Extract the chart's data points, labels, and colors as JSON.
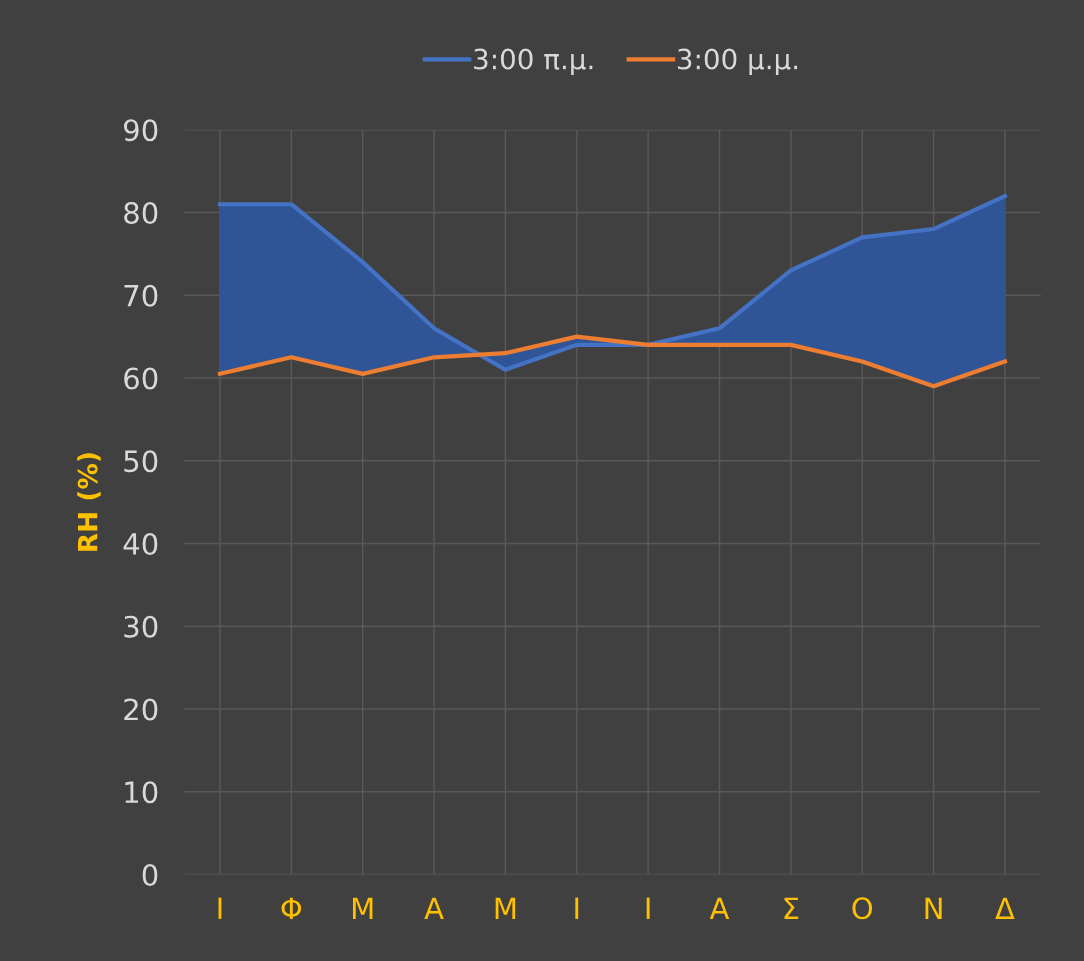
{
  "chart_data": {
    "type": "line",
    "ylabel": "RH (%)",
    "categories": [
      "Ι",
      "Φ",
      "Μ",
      "Α",
      "Μ",
      "Ι",
      "Ι",
      "Α",
      "Σ",
      "Ο",
      "Ν",
      "Δ"
    ],
    "series": [
      {
        "name": "3:00 π.μ.",
        "color": "#4472c4",
        "values": [
          81,
          81,
          74,
          66,
          61,
          64,
          64,
          66,
          73,
          77,
          78,
          82
        ],
        "lower": [
          60.5,
          62.5,
          60.5,
          62.5,
          63,
          65,
          64,
          64,
          64,
          62,
          59,
          62
        ],
        "upper": [
          81,
          81,
          74,
          66,
          61,
          64,
          64,
          66,
          73,
          77,
          78,
          82
        ]
      },
      {
        "name": "3:00 μ.μ.",
        "color": "#ed7d31",
        "values": [
          60.5,
          62.5,
          60.5,
          62.5,
          63,
          65,
          64,
          64,
          64,
          62,
          59,
          62
        ]
      }
    ],
    "ylim": [
      0,
      90
    ],
    "yticks": [
      0,
      10,
      20,
      30,
      40,
      50,
      60,
      70,
      80,
      90
    ],
    "grid": true,
    "legend": "top"
  }
}
